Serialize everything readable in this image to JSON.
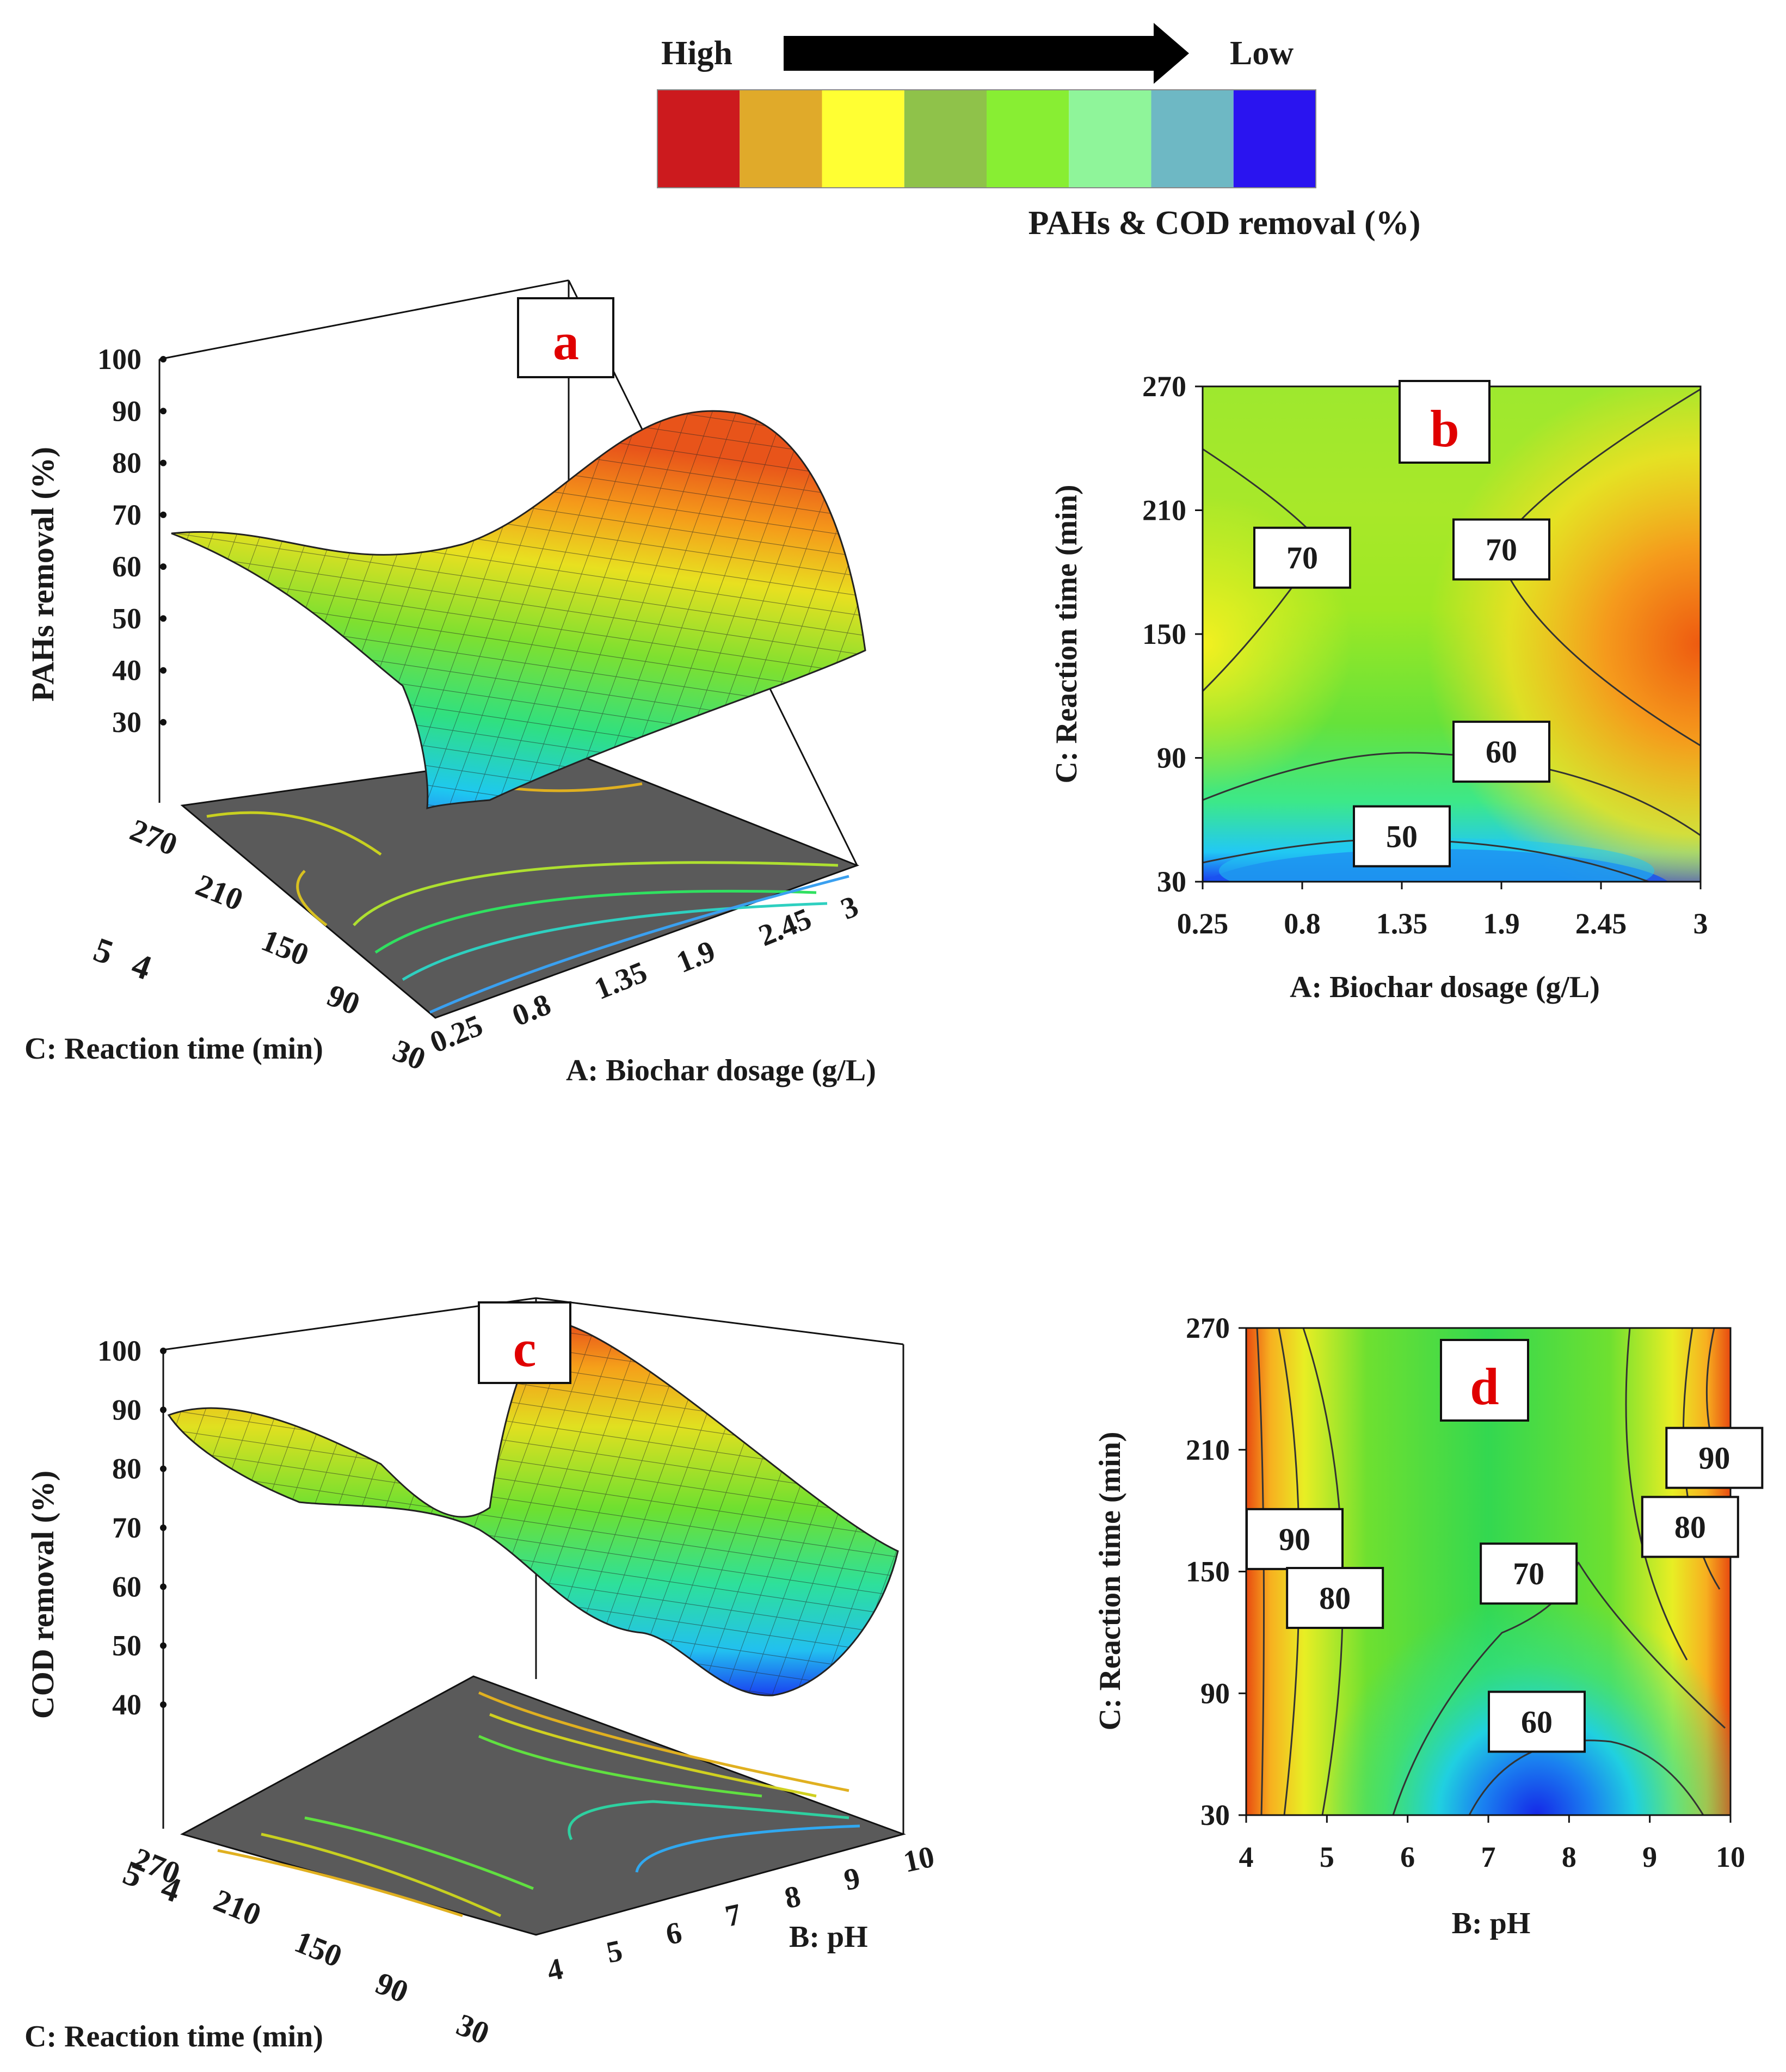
{
  "legend": {
    "high_label": "High",
    "low_label": "Low",
    "title": "PAHs & COD removal (%)",
    "colors": [
      "#cc1a1e",
      "#e0aa2a",
      "#ffff33",
      "#8fc24a",
      "#88ee33",
      "#8ff59a",
      "#6eb8c4",
      "#2a14f0"
    ]
  },
  "chart_data": [
    {
      "id": "a",
      "type": "surface3d",
      "panel_label": "a",
      "zlabel": "PAHs  removal (%)",
      "xlabel": "A: Biochar  dosage (g/L)",
      "ylabel": "C: Reaction time (min)",
      "z_ticks": [
        "100",
        "90",
        "80",
        "70",
        "60",
        "50",
        "40",
        "30"
      ],
      "x_ticks": [
        "0.25",
        "0.8",
        "1.35",
        "1.9",
        "2.45",
        "3"
      ],
      "y_ticks": [
        "270",
        "210",
        "150",
        "90",
        "30"
      ],
      "corner_ticks": [
        "5",
        "4"
      ],
      "x": [
        0.25,
        3
      ],
      "y": [
        30,
        270
      ],
      "zlim": [
        30,
        100
      ],
      "corner_values": {
        "x0.25_y270": 66,
        "x3_y270": 84,
        "x3_y30": 45,
        "x1.35_y30": 40
      }
    },
    {
      "id": "b",
      "type": "contour",
      "panel_label": "b",
      "xlabel": "A: Biochar  dosage (g/L)",
      "ylabel": "C: Reaction time (min)",
      "x_ticks": [
        "0.25",
        "0.8",
        "1.35",
        "1.9",
        "2.45",
        "3"
      ],
      "y_ticks": [
        "30",
        "90",
        "150",
        "210",
        "270"
      ],
      "xlim": [
        0.25,
        3
      ],
      "ylim": [
        30,
        270
      ],
      "contour_labels": [
        {
          "text": "70",
          "x": 0.8,
          "y": 187
        },
        {
          "text": "70",
          "x": 1.9,
          "y": 191
        },
        {
          "text": "60",
          "x": 1.9,
          "y": 93
        },
        {
          "text": "50",
          "x": 1.35,
          "y": 52
        }
      ]
    },
    {
      "id": "c",
      "type": "surface3d",
      "panel_label": "c",
      "zlabel": "COD  removal (%)",
      "xlabel": "B: pH",
      "ylabel": "C: Reaction time (min)",
      "z_ticks": [
        "100",
        "90",
        "80",
        "70",
        "60",
        "50",
        "40"
      ],
      "x_ticks": [
        "4",
        "5",
        "6",
        "7",
        "8",
        "9",
        "10"
      ],
      "y_ticks": [
        "270",
        "210",
        "150",
        "90",
        "30"
      ],
      "corner_ticks": [
        "5",
        "4"
      ],
      "x": [
        4,
        10
      ],
      "y": [
        30,
        270
      ],
      "zlim": [
        40,
        100
      ],
      "corner_values": {
        "x4_y270": 87,
        "x10_y270": 99,
        "x10_y30": 62,
        "x7.5_y30": 40
      }
    },
    {
      "id": "d",
      "type": "contour",
      "panel_label": "d",
      "xlabel": "B: pH",
      "ylabel": "C: Reaction time (min)",
      "x_ticks": [
        "4",
        "5",
        "6",
        "7",
        "8",
        "9",
        "10"
      ],
      "y_ticks": [
        "30",
        "90",
        "150",
        "210",
        "270"
      ],
      "xlim": [
        4,
        10
      ],
      "ylim": [
        30,
        270
      ],
      "contour_labels": [
        {
          "text": "90",
          "x": 4.6,
          "y": 166
        },
        {
          "text": "80",
          "x": 5.1,
          "y": 137
        },
        {
          "text": "70",
          "x": 7.5,
          "y": 149
        },
        {
          "text": "60",
          "x": 7.6,
          "y": 76
        },
        {
          "text": "80",
          "x": 9.5,
          "y": 172
        },
        {
          "text": "90",
          "x": 9.8,
          "y": 206
        }
      ]
    }
  ]
}
